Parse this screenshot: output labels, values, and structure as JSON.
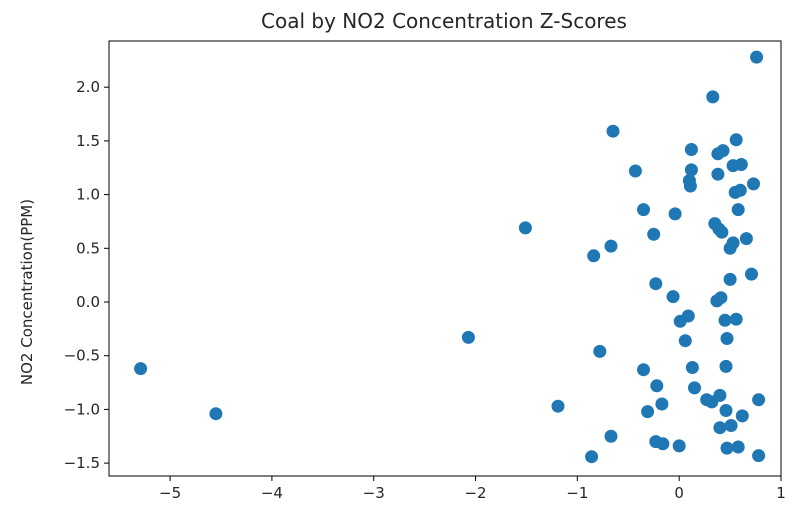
{
  "chart_data": {
    "type": "scatter",
    "title": "Coal by NO2 Concentration Z-Scores",
    "xlabel": "",
    "ylabel": "NO2 Concentration(PPM)",
    "xlim": [
      -5.6,
      1.0
    ],
    "ylim": [
      -1.62,
      2.43
    ],
    "xticks": [
      -5,
      -4,
      -3,
      -2,
      -1,
      0,
      1
    ],
    "yticks": [
      -1.5,
      -1.0,
      -0.5,
      0.0,
      0.5,
      1.0,
      1.5,
      2.0
    ],
    "xtick_labels": [
      "−5",
      "−4",
      "−3",
      "−2",
      "−1",
      "0",
      "1"
    ],
    "ytick_labels": [
      "−1.5",
      "−1.0",
      "−0.5",
      "0.0",
      "0.5",
      "1.0",
      "1.5",
      "2.0"
    ],
    "grid": false,
    "marker_color": "#1f77b4",
    "points": [
      {
        "x": -5.29,
        "y": -0.62
      },
      {
        "x": -4.55,
        "y": -1.04
      },
      {
        "x": -2.07,
        "y": -0.33
      },
      {
        "x": -1.51,
        "y": 0.69
      },
      {
        "x": -1.19,
        "y": -0.97
      },
      {
        "x": -0.86,
        "y": -1.44
      },
      {
        "x": -0.84,
        "y": 0.43
      },
      {
        "x": -0.78,
        "y": -0.46
      },
      {
        "x": -0.67,
        "y": -1.25
      },
      {
        "x": -0.67,
        "y": 0.52
      },
      {
        "x": -0.65,
        "y": 1.59
      },
      {
        "x": -0.43,
        "y": 1.22
      },
      {
        "x": -0.35,
        "y": 0.86
      },
      {
        "x": -0.35,
        "y": -0.63
      },
      {
        "x": -0.31,
        "y": -1.02
      },
      {
        "x": -0.25,
        "y": 0.63
      },
      {
        "x": -0.23,
        "y": 0.17
      },
      {
        "x": -0.22,
        "y": -0.78
      },
      {
        "x": -0.23,
        "y": -1.3
      },
      {
        "x": -0.17,
        "y": -0.95
      },
      {
        "x": -0.16,
        "y": -1.32
      },
      {
        "x": -0.06,
        "y": 0.05
      },
      {
        "x": -0.04,
        "y": 0.82
      },
      {
        "x": 0.0,
        "y": -1.34
      },
      {
        "x": 0.01,
        "y": -0.18
      },
      {
        "x": 0.06,
        "y": -0.36
      },
      {
        "x": 0.09,
        "y": -0.13
      },
      {
        "x": 0.1,
        "y": 1.13
      },
      {
        "x": 0.11,
        "y": 1.08
      },
      {
        "x": 0.12,
        "y": 1.23
      },
      {
        "x": 0.12,
        "y": 1.42
      },
      {
        "x": 0.13,
        "y": -0.61
      },
      {
        "x": 0.15,
        "y": -0.8
      },
      {
        "x": 0.27,
        "y": -0.91
      },
      {
        "x": 0.32,
        "y": -0.93
      },
      {
        "x": 0.33,
        "y": 1.91
      },
      {
        "x": 0.35,
        "y": 0.73
      },
      {
        "x": 0.37,
        "y": 0.01
      },
      {
        "x": 0.38,
        "y": 1.19
      },
      {
        "x": 0.38,
        "y": 1.38
      },
      {
        "x": 0.39,
        "y": 0.68
      },
      {
        "x": 0.4,
        "y": -0.87
      },
      {
        "x": 0.4,
        "y": -1.17
      },
      {
        "x": 0.41,
        "y": 0.04
      },
      {
        "x": 0.42,
        "y": 0.65
      },
      {
        "x": 0.43,
        "y": 1.41
      },
      {
        "x": 0.45,
        "y": -0.17
      },
      {
        "x": 0.46,
        "y": -0.6
      },
      {
        "x": 0.46,
        "y": -1.01
      },
      {
        "x": 0.47,
        "y": -1.36
      },
      {
        "x": 0.47,
        "y": -0.34
      },
      {
        "x": 0.5,
        "y": 0.21
      },
      {
        "x": 0.5,
        "y": 0.5
      },
      {
        "x": 0.51,
        "y": -1.15
      },
      {
        "x": 0.53,
        "y": 1.27
      },
      {
        "x": 0.53,
        "y": 0.55
      },
      {
        "x": 0.55,
        "y": 1.02
      },
      {
        "x": 0.56,
        "y": -0.16
      },
      {
        "x": 0.56,
        "y": 1.51
      },
      {
        "x": 0.58,
        "y": 0.86
      },
      {
        "x": 0.58,
        "y": -1.35
      },
      {
        "x": 0.6,
        "y": 1.04
      },
      {
        "x": 0.61,
        "y": 1.28
      },
      {
        "x": 0.62,
        "y": -1.06
      },
      {
        "x": 0.66,
        "y": 0.59
      },
      {
        "x": 0.71,
        "y": 0.26
      },
      {
        "x": 0.73,
        "y": 1.1
      },
      {
        "x": 0.76,
        "y": 2.28
      },
      {
        "x": 0.78,
        "y": -0.91
      },
      {
        "x": 0.78,
        "y": -1.43
      }
    ]
  }
}
